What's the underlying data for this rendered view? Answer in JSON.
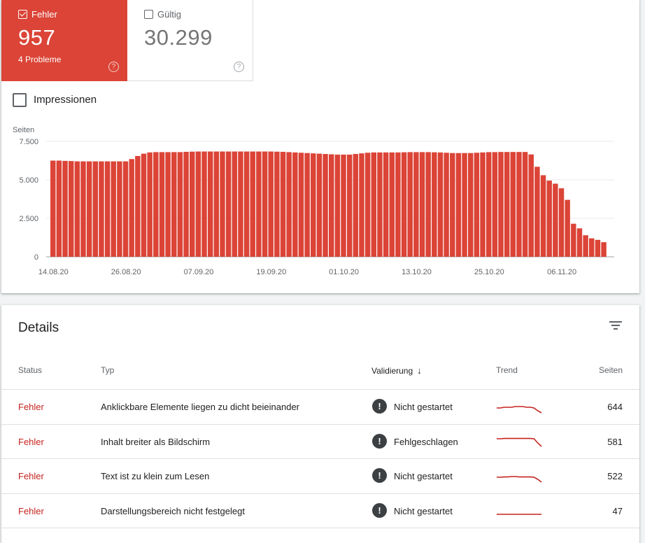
{
  "tiles": {
    "error": {
      "label": "Fehler",
      "value": "957",
      "sub": "4 Probleme",
      "checked": true,
      "color": "#db4437"
    },
    "valid": {
      "label": "Gültig",
      "value": "30.299",
      "checked": false
    }
  },
  "impressions_label": "Impressionen",
  "chart_data": {
    "type": "bar",
    "ylabel": "Seiten",
    "ylim": [
      0,
      7500
    ],
    "yticks": [
      "7.500",
      "5.000",
      "2.500",
      "0"
    ],
    "ytick_values": [
      7500,
      5000,
      2500,
      0
    ],
    "xtick_labels": [
      "14.08.20",
      "26.08.20",
      "07.09.20",
      "19.09.20",
      "01.10.20",
      "13.10.20",
      "25.10.20",
      "06.11.20"
    ],
    "xtick_indices": [
      0,
      12,
      24,
      36,
      48,
      60,
      72,
      84
    ],
    "color": "#db4437",
    "values": [
      6250,
      6250,
      6230,
      6220,
      6200,
      6200,
      6200,
      6200,
      6200,
      6200,
      6200,
      6200,
      6200,
      6350,
      6550,
      6700,
      6780,
      6800,
      6800,
      6800,
      6800,
      6800,
      6820,
      6830,
      6840,
      6840,
      6840,
      6840,
      6840,
      6840,
      6840,
      6840,
      6840,
      6840,
      6840,
      6840,
      6840,
      6830,
      6820,
      6800,
      6780,
      6760,
      6740,
      6720,
      6700,
      6680,
      6660,
      6640,
      6640,
      6640,
      6680,
      6720,
      6760,
      6780,
      6780,
      6780,
      6780,
      6780,
      6790,
      6800,
      6800,
      6800,
      6800,
      6790,
      6780,
      6760,
      6740,
      6740,
      6740,
      6740,
      6760,
      6780,
      6800,
      6800,
      6810,
      6810,
      6810,
      6810,
      6810,
      6650,
      5850,
      5300,
      4950,
      4750,
      4450,
      3700,
      2150,
      1850,
      1400,
      1200,
      1100,
      950
    ]
  },
  "details": {
    "title": "Details",
    "columns": {
      "status": "Status",
      "typ": "Typ",
      "validierung": "Validierung",
      "trend": "Trend",
      "seiten": "Seiten"
    },
    "rows": [
      {
        "status": "Fehler",
        "typ": "Anklickbare Elemente liegen zu dicht beieinander",
        "validierung": "Nicht gestartet",
        "seiten": "644",
        "trend": [
          0.6,
          0.6,
          0.55,
          0.55,
          0.55,
          0.5,
          0.5,
          0.5,
          0.55,
          0.55,
          0.6,
          0.8,
          0.95
        ]
      },
      {
        "status": "Fehler",
        "typ": "Inhalt breiter als Bildschirm",
        "validierung": "Fehlgeschlagen",
        "seiten": "581",
        "trend": [
          0.3,
          0.3,
          0.28,
          0.28,
          0.28,
          0.28,
          0.28,
          0.28,
          0.28,
          0.28,
          0.3,
          0.6,
          0.85
        ]
      },
      {
        "status": "Fehler",
        "typ": "Text ist zu klein zum Lesen",
        "validierung": "Nicht gestartet",
        "seiten": "522",
        "trend": [
          0.6,
          0.6,
          0.58,
          0.58,
          0.55,
          0.55,
          0.58,
          0.58,
          0.58,
          0.58,
          0.6,
          0.75,
          0.95
        ]
      },
      {
        "status": "Fehler",
        "typ": "Darstellungsbereich nicht festgelegt",
        "validierung": "Nicht gestartet",
        "seiten": "47",
        "trend": [
          0.75,
          0.75,
          0.75,
          0.75,
          0.75,
          0.75,
          0.75,
          0.75,
          0.75,
          0.75,
          0.75,
          0.75,
          0.75
        ]
      }
    ]
  }
}
